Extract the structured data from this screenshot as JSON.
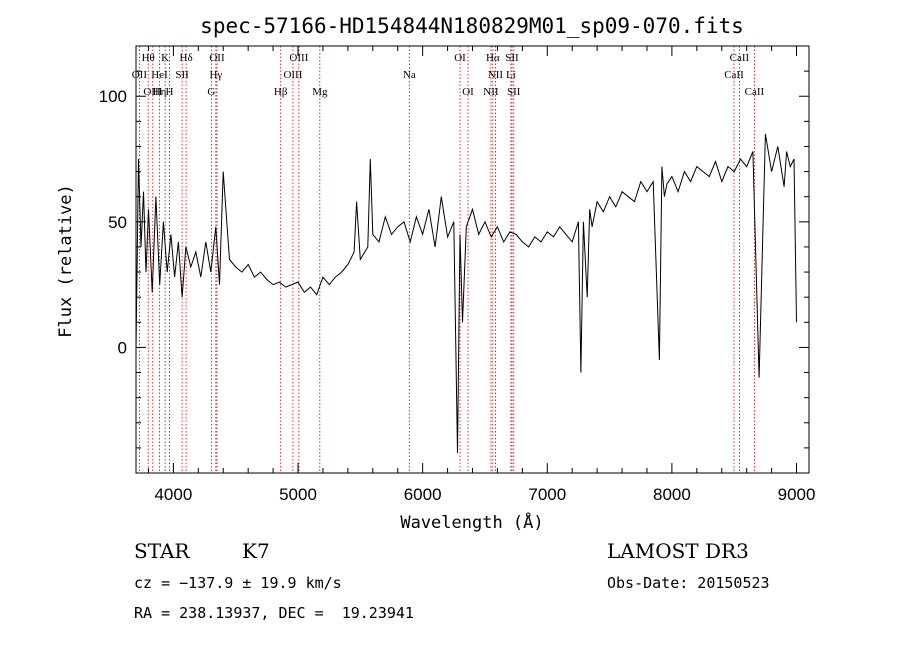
{
  "chart_data": {
    "type": "line",
    "title": "spec-57166-HD154844N180829M01_sp09-070.fits",
    "xlabel": "Wavelength (Å)",
    "ylabel": "Flux (relative)",
    "xlim": [
      3700,
      9100
    ],
    "ylim": [
      -50,
      120
    ],
    "x_ticks": [
      4000,
      5000,
      6000,
      7000,
      8000,
      9000
    ],
    "y_ticks": [
      0,
      50,
      100
    ],
    "grid": false,
    "series": [
      {
        "x": [
          3700,
          3720,
          3740,
          3760,
          3780,
          3800,
          3830,
          3860,
          3890,
          3920,
          3950,
          3980,
          4010,
          4040,
          4070,
          4100,
          4140,
          4180,
          4220,
          4260,
          4300,
          4340,
          4370,
          4400,
          4450,
          4500,
          4550,
          4600,
          4650,
          4700,
          4750,
          4800,
          4850,
          4900,
          4950,
          5000,
          5050,
          5100,
          5150,
          5200,
          5250,
          5300,
          5350,
          5400,
          5450,
          5470,
          5500,
          5560,
          5580,
          5600,
          5650,
          5700,
          5750,
          5800,
          5850,
          5900,
          5950,
          6000,
          6050,
          6100,
          6150,
          6200,
          6250,
          6280,
          6300,
          6320,
          6350,
          6400,
          6450,
          6500,
          6550,
          6600,
          6650,
          6700,
          6750,
          6800,
          6850,
          6900,
          6950,
          7000,
          7050,
          7100,
          7150,
          7200,
          7250,
          7270,
          7290,
          7320,
          7340,
          7360,
          7400,
          7450,
          7500,
          7550,
          7600,
          7650,
          7700,
          7750,
          7800,
          7850,
          7900,
          7920,
          7940,
          7960,
          8000,
          8050,
          8100,
          8150,
          8200,
          8250,
          8300,
          8350,
          8400,
          8450,
          8500,
          8550,
          8600,
          8650,
          8700,
          8750,
          8800,
          8850,
          8900,
          8920,
          8950,
          8980,
          9000
        ],
        "y": [
          -1,
          75,
          40,
          62,
          30,
          55,
          22,
          60,
          25,
          50,
          30,
          45,
          28,
          42,
          20,
          40,
          32,
          38,
          28,
          42,
          30,
          48,
          25,
          70,
          35,
          32,
          30,
          33,
          28,
          30,
          27,
          25,
          26,
          24,
          25,
          26,
          22,
          24,
          21,
          28,
          25,
          28,
          30,
          33,
          38,
          58,
          35,
          40,
          75,
          45,
          42,
          52,
          45,
          48,
          50,
          42,
          52,
          45,
          55,
          40,
          60,
          44,
          50,
          -42,
          45,
          10,
          48,
          55,
          45,
          50,
          44,
          48,
          42,
          46,
          45,
          42,
          40,
          44,
          42,
          46,
          44,
          48,
          45,
          42,
          50,
          -10,
          50,
          20,
          55,
          48,
          58,
          54,
          60,
          56,
          62,
          60,
          58,
          66,
          62,
          66,
          -5,
          72,
          60,
          65,
          68,
          62,
          70,
          66,
          72,
          70,
          68,
          74,
          66,
          72,
          70,
          75,
          72,
          78,
          -12,
          85,
          70,
          80,
          64,
          78,
          72,
          75,
          10
        ]
      }
    ],
    "spectral_lines": [
      {
        "label": "Hθ",
        "x": 3798,
        "row": 0
      },
      {
        "label": "K",
        "x": 3934,
        "row": 0
      },
      {
        "label": "Hδ",
        "x": 4102,
        "row": 0
      },
      {
        "label": "OII",
        "x": 4350,
        "row": 0
      },
      {
        "label": "OIII",
        "x": 5007,
        "row": 0
      },
      {
        "label": "OI",
        "x": 6300,
        "row": 0
      },
      {
        "label": "Hα",
        "x": 6563,
        "row": 0
      },
      {
        "label": "SII",
        "x": 6717,
        "row": 0
      },
      {
        "label": "CaII",
        "x": 8542,
        "row": 0
      },
      {
        "label": "OII",
        "x": 3727,
        "row": 1
      },
      {
        "label": "HeI",
        "x": 3889,
        "row": 1
      },
      {
        "label": "SII",
        "x": 4070,
        "row": 1
      },
      {
        "label": "Hγ",
        "x": 4341,
        "row": 1
      },
      {
        "label": "OIII",
        "x": 4959,
        "row": 1
      },
      {
        "label": "Na",
        "x": 5893,
        "row": 1
      },
      {
        "label": "NII",
        "x": 6584,
        "row": 1
      },
      {
        "label": "Li",
        "x": 6708,
        "row": 1
      },
      {
        "label": "CaII",
        "x": 8498,
        "row": 1
      },
      {
        "label": "OIII",
        "x": 3835,
        "row": 2
      },
      {
        "label": "Hη",
        "x": 3889,
        "row": 2
      },
      {
        "label": "H",
        "x": 3969,
        "row": 2
      },
      {
        "label": "G",
        "x": 4305,
        "row": 2
      },
      {
        "label": "Hβ",
        "x": 4861,
        "row": 2
      },
      {
        "label": "Mg",
        "x": 5175,
        "row": 2
      },
      {
        "label": "OI",
        "x": 6364,
        "row": 2
      },
      {
        "label": "NII",
        "x": 6548,
        "row": 2
      },
      {
        "label": "SII",
        "x": 6731,
        "row": 2
      },
      {
        "label": "CaII",
        "x": 8662,
        "row": 2
      }
    ],
    "marker_lines_x": [
      3727,
      3798,
      3835,
      3889,
      3934,
      3969,
      4070,
      4102,
      4305,
      4341,
      4350,
      4861,
      4959,
      5007,
      5175,
      5893,
      6300,
      6364,
      6548,
      6563,
      6584,
      6708,
      6717,
      6731,
      8498,
      8542,
      8662
    ],
    "colors": {
      "spectrum": "#000000",
      "marker_lines": "#cc0000"
    }
  },
  "info": {
    "object_class": "STAR",
    "subclass": "K7",
    "survey": "LAMOST DR3",
    "cz": "cz = −137.9 ± 19.9 km/s",
    "obs_date": "Obs-Date: 20150523",
    "coords": "RA = 238.13937, DEC =  19.23941"
  }
}
